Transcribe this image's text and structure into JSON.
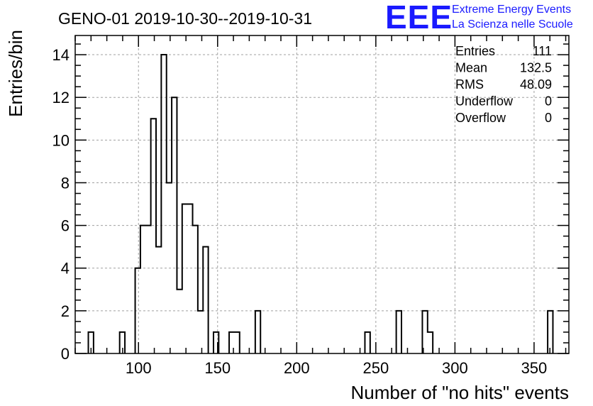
{
  "chart_data": {
    "type": "bar",
    "title": "GENO-01 2019-10-30--2019-10-31",
    "xlabel": "Number of \"no hits\" events",
    "ylabel": "Entries/bin",
    "xlim": [
      60,
      372
    ],
    "ylim": [
      0,
      14.9
    ],
    "bin_width": 3.3,
    "xticks": [
      100,
      150,
      200,
      250,
      300,
      350
    ],
    "yticks": [
      0,
      2,
      4,
      6,
      8,
      10,
      12,
      14
    ],
    "grid": true,
    "bins": [
      {
        "x": 68.3,
        "value": 1
      },
      {
        "x": 88.1,
        "value": 1
      },
      {
        "x": 97.9,
        "value": 4
      },
      {
        "x": 101.2,
        "value": 6
      },
      {
        "x": 104.5,
        "value": 6
      },
      {
        "x": 107.8,
        "value": 11
      },
      {
        "x": 111.1,
        "value": 5
      },
      {
        "x": 114.4,
        "value": 14
      },
      {
        "x": 117.7,
        "value": 8
      },
      {
        "x": 121.0,
        "value": 12
      },
      {
        "x": 124.3,
        "value": 3
      },
      {
        "x": 127.6,
        "value": 7
      },
      {
        "x": 130.9,
        "value": 7
      },
      {
        "x": 134.2,
        "value": 6
      },
      {
        "x": 137.5,
        "value": 2
      },
      {
        "x": 140.8,
        "value": 5
      },
      {
        "x": 147.4,
        "value": 1
      },
      {
        "x": 157.3,
        "value": 1
      },
      {
        "x": 160.6,
        "value": 1
      },
      {
        "x": 173.8,
        "value": 2
      },
      {
        "x": 243.1,
        "value": 1
      },
      {
        "x": 262.9,
        "value": 2
      },
      {
        "x": 279.4,
        "value": 2
      },
      {
        "x": 282.7,
        "value": 1
      },
      {
        "x": 358.6,
        "value": 2
      }
    ],
    "stats": [
      {
        "label": "Entries",
        "value": "111"
      },
      {
        "label": "Mean",
        "value": "132.5"
      },
      {
        "label": "RMS",
        "value": "48.09"
      },
      {
        "label": "Underflow",
        "value": "0"
      },
      {
        "label": "Overflow",
        "value": "0"
      }
    ]
  },
  "logo": {
    "mark": "EEE",
    "line1": "Extreme Energy Events",
    "line2": "La Scienza nelle Scuole"
  },
  "colors": {
    "line": "#000000",
    "grid": "#a0a0a0",
    "logo": "#1a1aff"
  }
}
